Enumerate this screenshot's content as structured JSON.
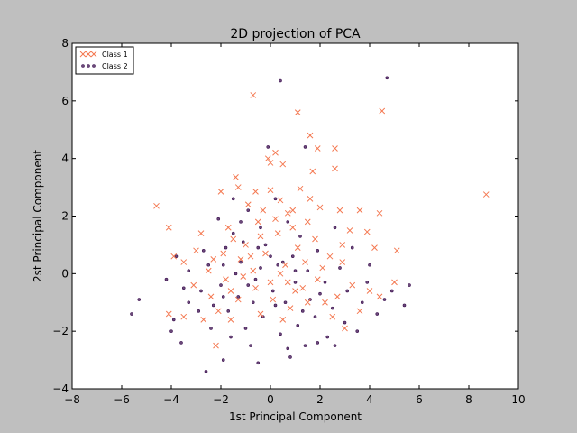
{
  "chart_data": {
    "type": "scatter",
    "title": "2D projection of PCA",
    "xlabel": "1st Principal Component",
    "ylabel": "2st Principal Component",
    "xlim": [
      -8,
      10
    ],
    "ylim": [
      -4,
      8
    ],
    "x_ticks": [
      "−8",
      "−6",
      "−4",
      "−2",
      "0",
      "2",
      "4",
      "6",
      "8",
      "10"
    ],
    "y_ticks": [
      "−4",
      "−2",
      "0",
      "2",
      "4",
      "6",
      "8"
    ],
    "grid": false,
    "legend_position": "top-left",
    "series": [
      {
        "name": "Class 1",
        "marker": "x",
        "color": "#f4774f",
        "points": [
          [
            -0.7,
            6.2
          ],
          [
            4.5,
            5.65
          ],
          [
            1.1,
            5.6
          ],
          [
            8.7,
            2.75
          ],
          [
            -4.6,
            2.35
          ],
          [
            -4.1,
            1.6
          ],
          [
            1.6,
            4.8
          ],
          [
            0.2,
            4.2
          ],
          [
            2.6,
            4.35
          ],
          [
            1.9,
            4.35
          ],
          [
            -0.1,
            4.0
          ],
          [
            0.5,
            3.8
          ],
          [
            2.6,
            3.65
          ],
          [
            1.7,
            3.55
          ],
          [
            -1.4,
            3.35
          ],
          [
            1.2,
            2.95
          ],
          [
            0.0,
            3.85
          ],
          [
            -1.3,
            3.0
          ],
          [
            -2.0,
            2.85
          ],
          [
            -0.6,
            2.85
          ],
          [
            0.4,
            2.55
          ],
          [
            1.6,
            2.6
          ],
          [
            0.9,
            2.2
          ],
          [
            0.7,
            2.1
          ],
          [
            -0.3,
            2.2
          ],
          [
            2.0,
            2.3
          ],
          [
            2.8,
            2.2
          ],
          [
            3.6,
            2.2
          ],
          [
            4.4,
            2.1
          ],
          [
            3.2,
            1.5
          ],
          [
            3.9,
            1.45
          ],
          [
            5.1,
            0.8
          ],
          [
            4.2,
            0.9
          ],
          [
            2.9,
            1.0
          ],
          [
            1.8,
            1.2
          ],
          [
            1.1,
            0.9
          ],
          [
            0.3,
            1.4
          ],
          [
            -0.5,
            1.8
          ],
          [
            -1.5,
            1.2
          ],
          [
            -2.8,
            1.4
          ],
          [
            -3.5,
            0.4
          ],
          [
            -3.9,
            0.6
          ],
          [
            -3.1,
            -0.4
          ],
          [
            -2.4,
            -0.8
          ],
          [
            -1.8,
            -0.2
          ],
          [
            -1.2,
            0.5
          ],
          [
            -0.7,
            0.1
          ],
          [
            0.0,
            -0.3
          ],
          [
            0.6,
            0.3
          ],
          [
            1.3,
            -0.5
          ],
          [
            2.1,
            0.2
          ],
          [
            2.7,
            -0.8
          ],
          [
            3.3,
            -0.4
          ],
          [
            4.0,
            -0.6
          ],
          [
            5.0,
            -0.3
          ],
          [
            4.4,
            -0.8
          ],
          [
            3.6,
            -1.3
          ],
          [
            2.5,
            -1.5
          ],
          [
            1.5,
            -1.0
          ],
          [
            0.8,
            -1.2
          ],
          [
            0.1,
            -0.9
          ],
          [
            -0.6,
            -0.5
          ],
          [
            -1.3,
            -0.9
          ],
          [
            -2.1,
            -1.3
          ],
          [
            -2.7,
            -1.6
          ],
          [
            -3.5,
            -1.5
          ],
          [
            -4.1,
            -1.4
          ],
          [
            -2.2,
            -2.5
          ],
          [
            -1.6,
            -1.6
          ],
          [
            -0.4,
            -1.4
          ],
          [
            0.5,
            -1.6
          ],
          [
            2.2,
            -1.0
          ],
          [
            3.0,
            -1.9
          ],
          [
            -1.9,
            0.7
          ],
          [
            -1.0,
            1.0
          ],
          [
            -0.2,
            0.7
          ],
          [
            0.2,
            1.9
          ],
          [
            0.9,
            1.6
          ],
          [
            1.4,
            0.4
          ],
          [
            -2.5,
            0.1
          ],
          [
            -3.0,
            0.8
          ],
          [
            -1.6,
            -0.6
          ],
          [
            0.7,
            -0.3
          ],
          [
            1.9,
            -0.2
          ],
          [
            2.4,
            0.6
          ],
          [
            -0.9,
            2.4
          ],
          [
            0.0,
            2.9
          ],
          [
            -0.4,
            1.3
          ],
          [
            1.5,
            1.8
          ],
          [
            -1.1,
            -0.1
          ],
          [
            -2.3,
            0.5
          ],
          [
            -1.7,
            1.6
          ],
          [
            -0.8,
            0.6
          ],
          [
            0.4,
            0.0
          ],
          [
            1.0,
            -0.6
          ],
          [
            2.9,
            0.4
          ]
        ]
      },
      {
        "name": "Class 2",
        "marker": "o",
        "color": "#3b0f4f",
        "points": [
          [
            0.4,
            6.7
          ],
          [
            4.7,
            6.8
          ],
          [
            -0.1,
            4.4
          ],
          [
            1.4,
            4.4
          ],
          [
            -5.3,
            -0.9
          ],
          [
            -5.6,
            -1.4
          ],
          [
            -4.0,
            -2.0
          ],
          [
            -3.6,
            -2.4
          ],
          [
            -2.6,
            -3.4
          ],
          [
            -1.9,
            -3.0
          ],
          [
            -0.5,
            -3.1
          ],
          [
            0.7,
            -2.6
          ],
          [
            1.4,
            -2.5
          ],
          [
            2.6,
            -2.5
          ],
          [
            -3.8,
            0.6
          ],
          [
            -4.2,
            -0.2
          ],
          [
            -3.3,
            0.1
          ],
          [
            -2.8,
            -0.6
          ],
          [
            -2.3,
            -1.1
          ],
          [
            -1.9,
            0.3
          ],
          [
            -1.5,
            1.4
          ],
          [
            -1.2,
            0.4
          ],
          [
            -0.9,
            -0.4
          ],
          [
            -0.4,
            0.2
          ],
          [
            0.1,
            -0.6
          ],
          [
            0.6,
            -1.0
          ],
          [
            1.0,
            -0.3
          ],
          [
            1.5,
            0.1
          ],
          [
            2.0,
            -0.7
          ],
          [
            2.5,
            -1.2
          ],
          [
            3.1,
            -0.6
          ],
          [
            3.7,
            -1.0
          ],
          [
            4.3,
            -1.4
          ],
          [
            4.9,
            -0.6
          ],
          [
            5.6,
            -0.4
          ],
          [
            5.4,
            -1.1
          ],
          [
            4.0,
            0.3
          ],
          [
            3.3,
            0.9
          ],
          [
            2.6,
            1.6
          ],
          [
            1.9,
            0.8
          ],
          [
            1.2,
            1.3
          ],
          [
            0.7,
            1.8
          ],
          [
            0.2,
            2.6
          ],
          [
            -0.4,
            1.6
          ],
          [
            -0.9,
            2.2
          ],
          [
            -1.5,
            2.6
          ],
          [
            -2.1,
            1.9
          ],
          [
            -2.7,
            0.8
          ],
          [
            -3.3,
            -1.0
          ],
          [
            -3.9,
            -1.6
          ],
          [
            -2.4,
            -1.9
          ],
          [
            -1.7,
            -1.3
          ],
          [
            -1.0,
            -1.9
          ],
          [
            -0.3,
            -1.5
          ],
          [
            0.4,
            -2.1
          ],
          [
            1.1,
            -1.8
          ],
          [
            1.8,
            -1.5
          ],
          [
            2.3,
            -2.2
          ],
          [
            3.0,
            -1.7
          ],
          [
            3.5,
            -2.0
          ],
          [
            -1.3,
            -0.8
          ],
          [
            -0.7,
            -1.0
          ],
          [
            0.0,
            0.6
          ],
          [
            0.5,
            0.4
          ],
          [
            -1.8,
            0.9
          ],
          [
            -1.1,
            1.1
          ],
          [
            -0.2,
            1.0
          ],
          [
            0.9,
            0.6
          ],
          [
            1.6,
            -0.9
          ],
          [
            2.8,
            0.2
          ],
          [
            -2.0,
            -0.4
          ],
          [
            -1.4,
            0.0
          ],
          [
            -0.6,
            -0.2
          ],
          [
            0.2,
            -1.1
          ],
          [
            1.3,
            -1.3
          ],
          [
            -2.9,
            -1.3
          ],
          [
            -3.5,
            -0.5
          ],
          [
            -1.6,
            -2.2
          ],
          [
            -0.8,
            -2.5
          ],
          [
            0.8,
            -2.9
          ],
          [
            1.9,
            -2.4
          ],
          [
            2.2,
            -0.3
          ],
          [
            3.9,
            -0.3
          ],
          [
            4.6,
            -0.9
          ],
          [
            -1.2,
            1.8
          ],
          [
            -0.5,
            0.9
          ],
          [
            0.3,
            0.3
          ],
          [
            -2.5,
            0.3
          ],
          [
            -1.9,
            -0.8
          ],
          [
            1.0,
            0.1
          ]
        ]
      }
    ]
  }
}
